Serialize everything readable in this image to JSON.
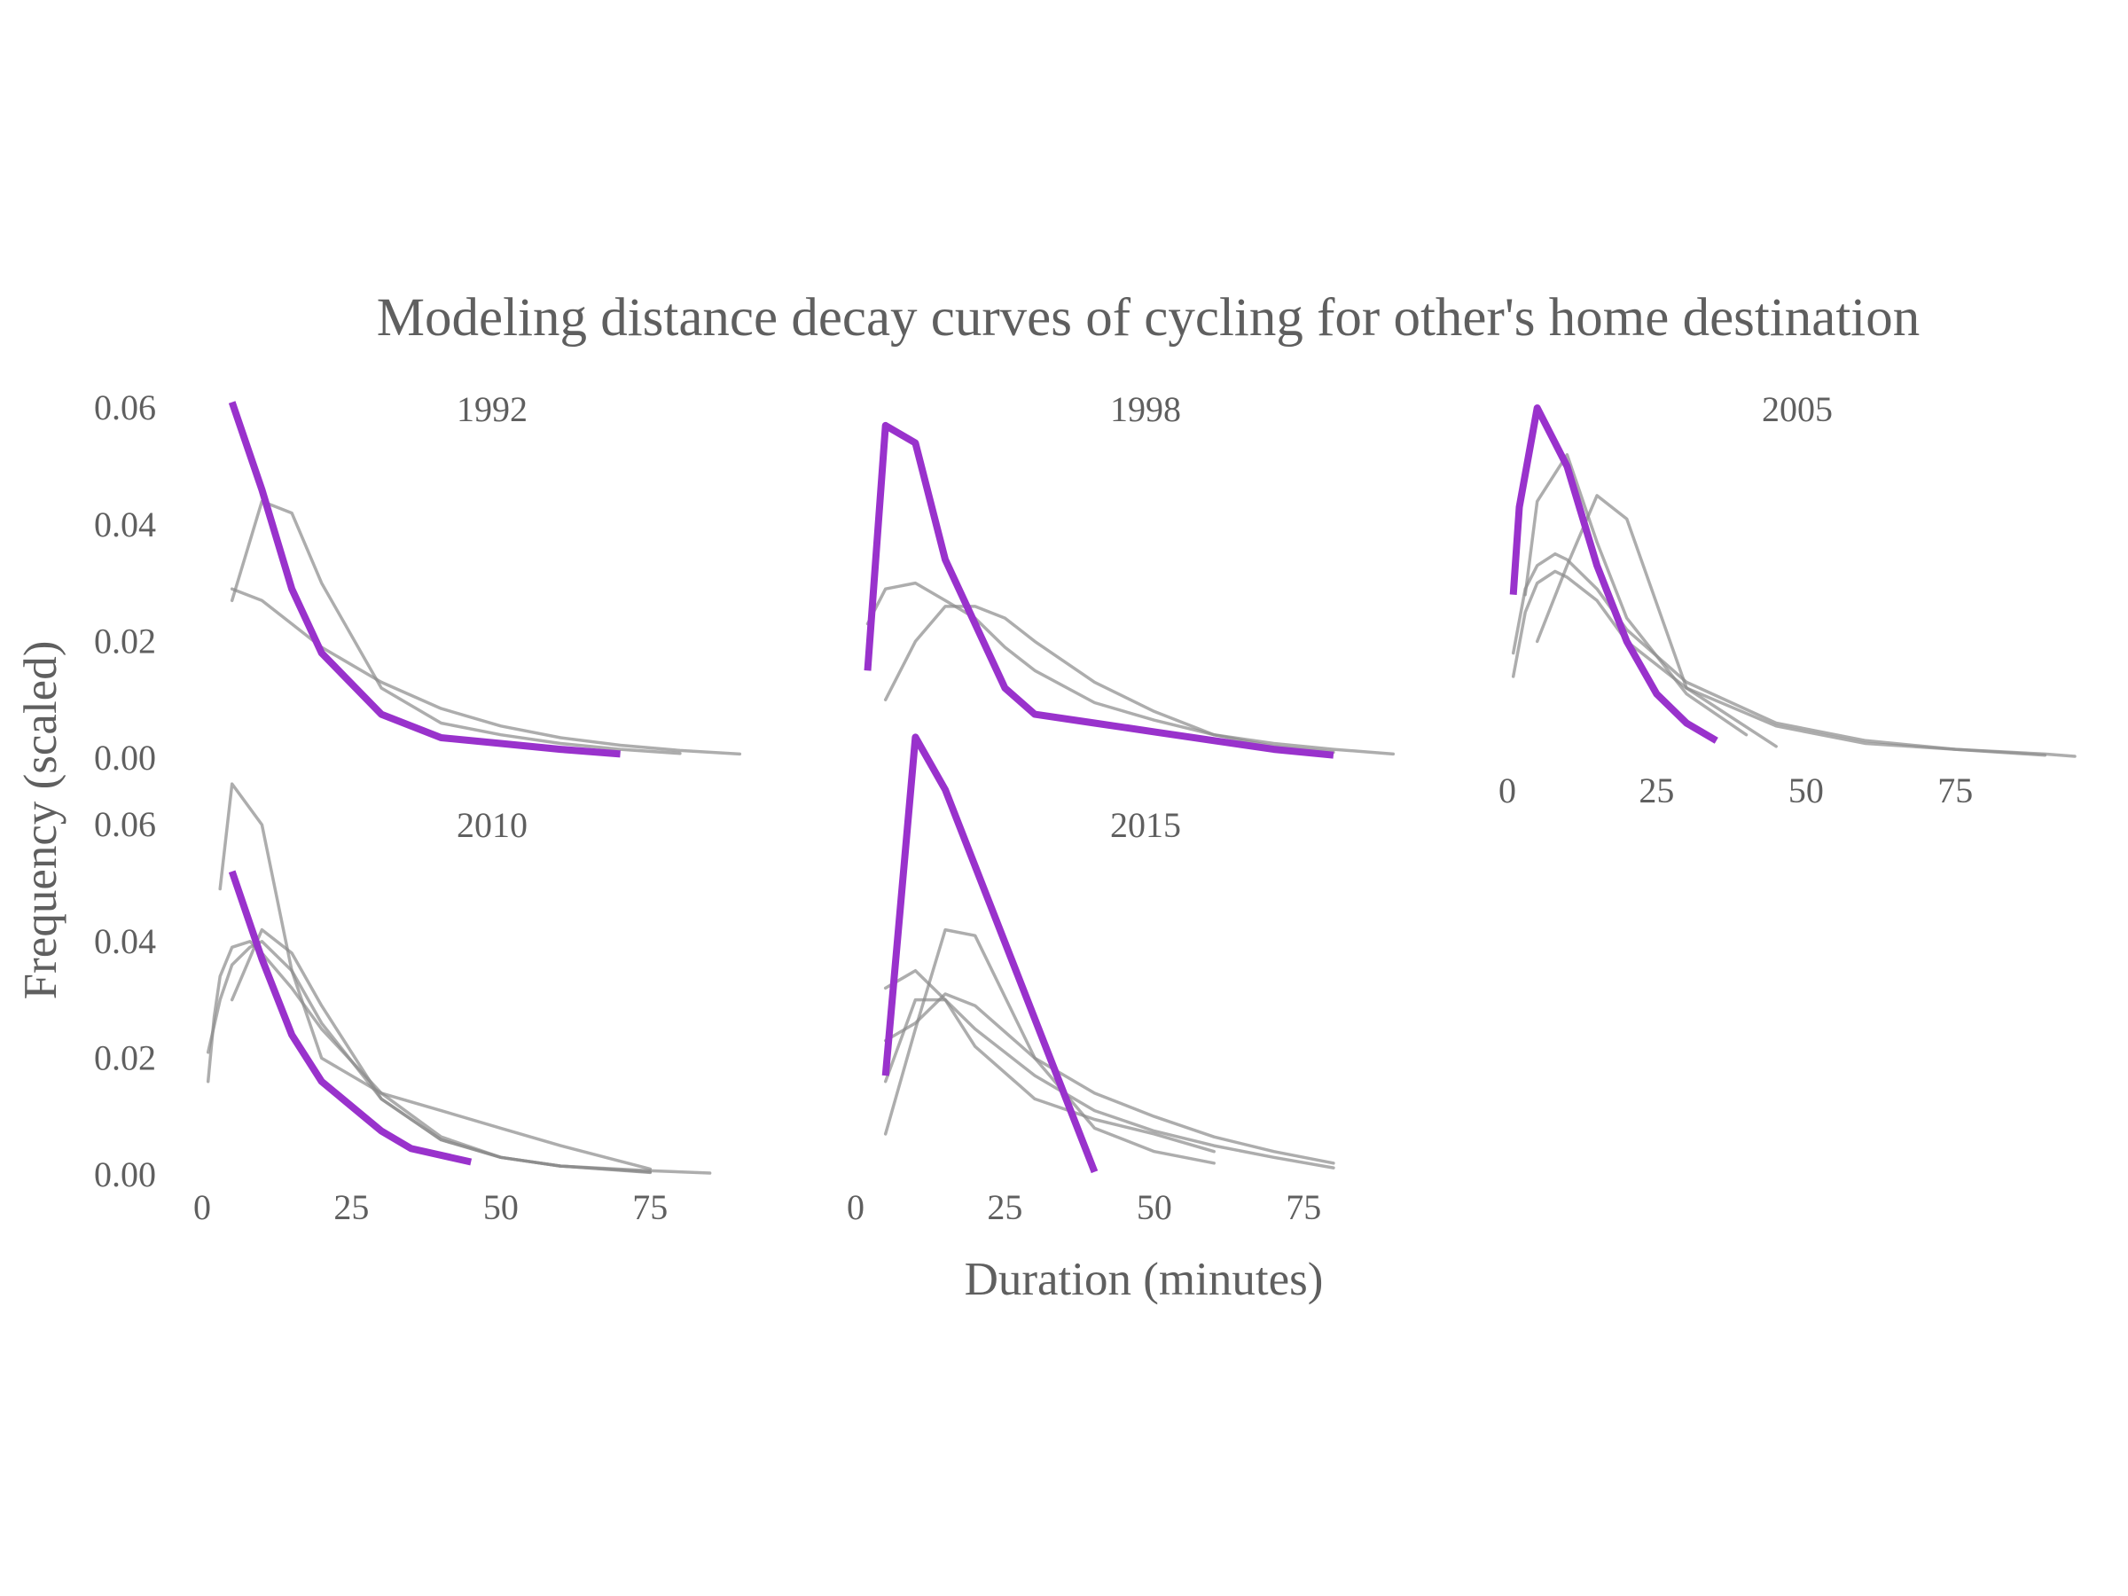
{
  "colors": {
    "highlight": "#9932CC",
    "context": "#8A8A8A",
    "text": "#5F5F5F",
    "background": "#FFFFFF"
  },
  "chart_data": {
    "type": "line",
    "title": "Modeling distance decay curves of cycling for other's home destination",
    "xlabel": "Duration (minutes)",
    "ylabel": "Frequency (scaled)",
    "xlim": [
      0,
      95
    ],
    "ylim": [
      0,
      0.065
    ],
    "x_ticks": [
      "0",
      "25",
      "50",
      "75"
    ],
    "y_ticks": [
      "0.00",
      "0.02",
      "0.04",
      "0.06"
    ],
    "grid": false,
    "legend": "none",
    "panels": [
      {
        "label": "1992",
        "highlight": {
          "x": [
            5,
            10,
            15,
            20,
            30,
            40,
            50,
            60,
            70
          ],
          "y": [
            0.061,
            0.046,
            0.029,
            0.018,
            0.0075,
            0.0035,
            0.0025,
            0.0015,
            0.0007
          ]
        },
        "context": [
          {
            "x": [
              5,
              10,
              15,
              20,
              30,
              40,
              50,
              60,
              70,
              80,
              90
            ],
            "y": [
              0.029,
              0.027,
              0.023,
              0.019,
              0.013,
              0.0085,
              0.0055,
              0.0035,
              0.0022,
              0.0013,
              0.0007
            ]
          },
          {
            "x": [
              5,
              10,
              15,
              20,
              30,
              40,
              50,
              60,
              70,
              80
            ],
            "y": [
              0.027,
              0.044,
              0.042,
              0.03,
              0.012,
              0.006,
              0.004,
              0.0025,
              0.0015,
              0.0008
            ]
          }
        ]
      },
      {
        "label": "1998",
        "highlight": {
          "x": [
            2,
            5,
            10,
            15,
            25,
            30,
            40,
            50,
            60,
            70,
            80
          ],
          "y": [
            0.015,
            0.057,
            0.054,
            0.034,
            0.012,
            0.0075,
            0.006,
            0.0045,
            0.003,
            0.0015,
            0.0005
          ]
        },
        "context": [
          {
            "x": [
              2,
              5,
              10,
              15,
              20,
              25,
              30,
              40,
              50,
              60,
              70,
              80,
              90
            ],
            "y": [
              0.023,
              0.029,
              0.03,
              0.027,
              0.024,
              0.019,
              0.015,
              0.0095,
              0.0065,
              0.004,
              0.0025,
              0.0015,
              0.0007
            ]
          },
          {
            "x": [
              5,
              10,
              15,
              20,
              25,
              30,
              40,
              50,
              60,
              70,
              80
            ],
            "y": [
              0.01,
              0.02,
              0.026,
              0.026,
              0.024,
              0.02,
              0.013,
              0.008,
              0.004,
              0.002,
              0.001
            ]
          }
        ]
      },
      {
        "label": "2005",
        "highlight": {
          "x": [
            1,
            2,
            5,
            10,
            15,
            20,
            25,
            30,
            35
          ],
          "y": [
            0.028,
            0.043,
            0.06,
            0.05,
            0.033,
            0.02,
            0.011,
            0.006,
            0.003
          ]
        },
        "context": [
          {
            "x": [
              1,
              3,
              5,
              8,
              10,
              15,
              20,
              30,
              45,
              60,
              75,
              90,
              95
            ],
            "y": [
              0.014,
              0.025,
              0.03,
              0.032,
              0.031,
              0.027,
              0.02,
              0.012,
              0.0055,
              0.0025,
              0.0015,
              0.0007,
              0.0003
            ]
          },
          {
            "x": [
              1,
              3,
              5,
              8,
              10,
              15,
              20,
              30,
              45,
              60,
              75,
              90
            ],
            "y": [
              0.018,
              0.029,
              0.033,
              0.035,
              0.034,
              0.029,
              0.022,
              0.013,
              0.006,
              0.003,
              0.0015,
              0.0005
            ]
          },
          {
            "x": [
              5,
              10,
              15,
              20,
              30,
              45
            ],
            "y": [
              0.02,
              0.033,
              0.045,
              0.041,
              0.012,
              0.002
            ]
          },
          {
            "x": [
              3,
              5,
              10,
              15,
              20,
              30,
              40
            ],
            "y": [
              0.028,
              0.044,
              0.052,
              0.037,
              0.024,
              0.011,
              0.004
            ]
          }
        ]
      },
      {
        "label": "2010",
        "highlight": {
          "x": [
            5,
            10,
            15,
            20,
            30,
            35,
            45
          ],
          "y": [
            0.052,
            0.037,
            0.024,
            0.016,
            0.0075,
            0.0045,
            0.0022
          ]
        },
        "context": [
          {
            "x": [
              1,
              2,
              3,
              5,
              8,
              10,
              15,
              20,
              30,
              40,
              50,
              60,
              75,
              85
            ],
            "y": [
              0.016,
              0.027,
              0.034,
              0.039,
              0.04,
              0.038,
              0.032,
              0.025,
              0.014,
              0.0065,
              0.003,
              0.0015,
              0.0007,
              0.0003
            ]
          },
          {
            "x": [
              1,
              3,
              5,
              8,
              10,
              15,
              20,
              30,
              40,
              50,
              60,
              75
            ],
            "y": [
              0.021,
              0.03,
              0.036,
              0.039,
              0.04,
              0.035,
              0.026,
              0.013,
              0.006,
              0.003,
              0.0015,
              0.0004
            ]
          },
          {
            "x": [
              3,
              5,
              10,
              15,
              20,
              25,
              30,
              40,
              50,
              60,
              75
            ],
            "y": [
              0.049,
              0.067,
              0.06,
              0.035,
              0.02,
              0.017,
              0.014,
              0.011,
              0.008,
              0.005,
              0.001
            ]
          },
          {
            "x": [
              5,
              10,
              15,
              20,
              30,
              40,
              50,
              60,
              75
            ],
            "y": [
              0.03,
              0.042,
              0.038,
              0.029,
              0.013,
              0.006,
              0.003,
              0.0015,
              0.0005
            ]
          }
        ]
      },
      {
        "label": "2015",
        "highlight": {
          "x": [
            5,
            10,
            15,
            40
          ],
          "y": [
            0.017,
            0.075,
            0.066,
            0.0005
          ]
        },
        "context": [
          {
            "x": [
              5,
              10,
              15,
              20,
              30,
              40,
              50,
              60
            ],
            "y": [
              0.007,
              0.025,
              0.042,
              0.041,
              0.02,
              0.008,
              0.004,
              0.002
            ]
          },
          {
            "x": [
              5,
              10,
              15,
              20,
              30,
              40,
              50,
              60,
              70,
              80
            ],
            "y": [
              0.016,
              0.03,
              0.03,
              0.025,
              0.017,
              0.011,
              0.0075,
              0.005,
              0.003,
              0.0012
            ]
          },
          {
            "x": [
              5,
              10,
              15,
              20,
              30,
              40,
              50,
              60
            ],
            "y": [
              0.032,
              0.035,
              0.03,
              0.022,
              0.013,
              0.0095,
              0.007,
              0.004
            ]
          },
          {
            "x": [
              5,
              10,
              15,
              20,
              30,
              40,
              50,
              60,
              70,
              80
            ],
            "y": [
              0.023,
              0.026,
              0.031,
              0.029,
              0.02,
              0.014,
              0.01,
              0.0065,
              0.004,
              0.002
            ]
          }
        ]
      }
    ]
  }
}
